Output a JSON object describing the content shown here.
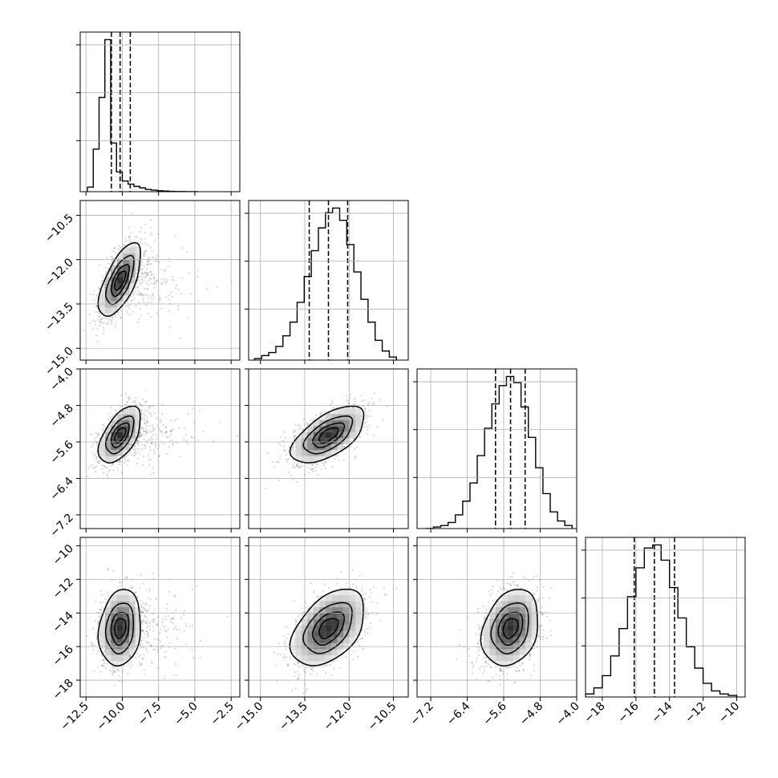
{
  "chart_data": {
    "type": "corner",
    "n_params": 4,
    "grid": true,
    "params": [
      {
        "ticks": [
          -12.5,
          -10.0,
          -7.5,
          -5.0,
          -2.5
        ],
        "tick_labels": [
          "−12.5",
          "−10.0",
          "−7.5",
          "−5.0",
          "−2.5"
        ],
        "lim": [
          -12.9,
          -1.9
        ],
        "mean": -10.15,
        "sd": 0.7,
        "quantiles": [
          -10.75,
          -10.15,
          -9.45
        ],
        "hist_bins": [
          -12.4,
          -12.0,
          -11.6,
          -11.2,
          -10.8,
          -10.4,
          -10.0,
          -9.6,
          -9.2,
          -8.8,
          -8.4,
          -8.0,
          -7.6,
          -7.2,
          -6.8,
          -6.4,
          -6.0,
          -5.6,
          -5.2,
          -4.8
        ],
        "hist_values": [
          0.03,
          0.28,
          0.62,
          1.0,
          0.32,
          0.13,
          0.07,
          0.05,
          0.035,
          0.025,
          0.015,
          0.01,
          0.006,
          0.004,
          0.002,
          0.001,
          0.001,
          0.0,
          0.0
        ]
      },
      {
        "ticks": [
          -15.0,
          -13.5,
          -12.0,
          -10.5
        ],
        "tick_labels": [
          "−15.0",
          "−13.5",
          "−12.0",
          "−10.5"
        ],
        "lim": [
          -15.4,
          -10.0
        ],
        "mean": -12.7,
        "sd": 0.6,
        "quantiles": [
          -13.35,
          -12.7,
          -12.05
        ],
        "hist_bins": [
          -15.2,
          -14.96,
          -14.72,
          -14.48,
          -14.24,
          -14.0,
          -13.76,
          -13.52,
          -13.28,
          -13.04,
          -12.8,
          -12.56,
          -12.32,
          -12.08,
          -11.84,
          -11.6,
          -11.36,
          -11.12,
          -10.88,
          -10.64,
          -10.4
        ],
        "hist_values": [
          0.01,
          0.03,
          0.05,
          0.09,
          0.16,
          0.25,
          0.38,
          0.55,
          0.72,
          0.87,
          0.97,
          1.0,
          0.92,
          0.76,
          0.58,
          0.4,
          0.25,
          0.13,
          0.06,
          0.02
        ]
      },
      {
        "ticks": [
          -7.2,
          -6.4,
          -5.6,
          -4.8,
          -4.0
        ],
        "tick_labels": [
          "−7.2",
          "−6.4",
          "−5.6",
          "−4.8",
          "−4.0"
        ],
        "lim": [
          -7.5,
          -4.0
        ],
        "mean": -5.45,
        "sd": 0.3,
        "quantiles": [
          -5.78,
          -5.45,
          -5.13
        ],
        "hist_bins": [
          -7.3,
          -7.14,
          -6.98,
          -6.82,
          -6.66,
          -6.5,
          -6.34,
          -6.18,
          -6.02,
          -5.86,
          -5.7,
          -5.54,
          -5.38,
          -5.22,
          -5.06,
          -4.9,
          -4.74,
          -4.58,
          -4.42,
          -4.26,
          -4.1
        ],
        "hist_values": [
          0.0,
          0.01,
          0.02,
          0.04,
          0.09,
          0.18,
          0.3,
          0.48,
          0.66,
          0.82,
          0.94,
          1.0,
          0.96,
          0.8,
          0.6,
          0.4,
          0.23,
          0.11,
          0.05,
          0.02
        ]
      },
      {
        "ticks": [
          -18,
          -16,
          -14,
          -12,
          -10
        ],
        "tick_labels": [
          "−18",
          "−16",
          "−14",
          "−12",
          "−10"
        ],
        "lim": [
          -19.0,
          -9.5
        ],
        "mean": -14.9,
        "sd": 1.1,
        "quantiles": [
          -16.1,
          -14.9,
          -13.7
        ],
        "hist_bins": [
          -19.0,
          -18.5,
          -18.0,
          -17.5,
          -17.0,
          -16.5,
          -16.0,
          -15.5,
          -15.0,
          -14.5,
          -14.0,
          -13.5,
          -13.0,
          -12.5,
          -12.0,
          -11.5,
          -11.0,
          -10.5,
          -10.0
        ],
        "hist_values": [
          0.02,
          0.06,
          0.14,
          0.27,
          0.45,
          0.66,
          0.85,
          0.98,
          1.0,
          0.9,
          0.72,
          0.52,
          0.33,
          0.19,
          0.09,
          0.04,
          0.02,
          0.01
        ]
      }
    ],
    "correlations": {
      "1-0": 0.65,
      "2-0": 0.55,
      "2-1": 0.6,
      "3-0": 0.15,
      "3-1": 0.45,
      "3-2": 0.25
    },
    "contour_levels_sigma": [
      0.5,
      1.0,
      1.5,
      2.0
    ]
  }
}
